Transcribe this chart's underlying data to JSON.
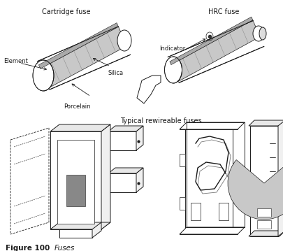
{
  "background_color": "#ffffff",
  "labels": {
    "cartridge_fuse": "Cartridge fuse",
    "hrc_fuse": "HRC fuse",
    "element": "Element",
    "silica": "Silica",
    "porcelain": "Porcelain",
    "indicator": "Indicator",
    "typical": "Typical rewireable fuses"
  },
  "figure_caption": "Figure 100",
  "figure_caption_italic": "Fuses",
  "line_color": "#1a1a1a",
  "fill_light": "#f0f0f0",
  "fill_mid": "#c8c8c8",
  "fill_dark": "#888888",
  "fill_very_light": "#e8e8e8",
  "figsize": [
    4.06,
    3.59
  ],
  "dpi": 100
}
